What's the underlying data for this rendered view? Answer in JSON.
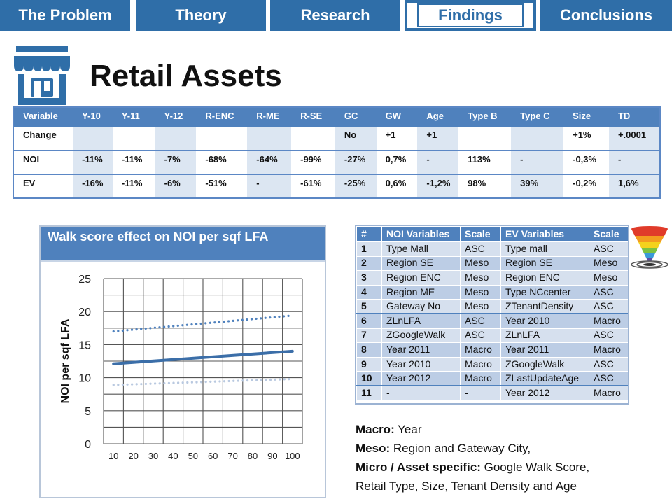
{
  "nav": {
    "tabs": [
      {
        "label": "The Problem",
        "active": false
      },
      {
        "label": "Theory",
        "active": false
      },
      {
        "label": "Research",
        "active": false
      },
      {
        "label": "Findings",
        "active": true
      },
      {
        "label": "Conclusions",
        "active": false
      }
    ]
  },
  "colors": {
    "nav_blue": "#2f6ea8",
    "table_header": "#4f81bd",
    "shade": "#dce6f2"
  },
  "page": {
    "title": "Retail Assets",
    "icon": "store-icon"
  },
  "top_table": {
    "columns": [
      "Variable",
      "Y-10",
      "Y-11",
      "Y-12",
      "R-ENC",
      "R-ME",
      "R-SE",
      "GC",
      "GW",
      "Age",
      "Type B",
      "Type C",
      "Size",
      "TD"
    ],
    "rows": [
      [
        "Change",
        "",
        "",
        "",
        "",
        "",
        "",
        "No",
        "+1",
        "+1",
        "",
        "",
        "+1%",
        "+.0001"
      ],
      [
        "NOI",
        "-11%",
        "-11%",
        "-7%",
        "-68%",
        "-64%",
        "-99%",
        "-27%",
        "0,7%",
        "-",
        "113%",
        "-",
        "-0,3%",
        "-"
      ],
      [
        "EV",
        "-16%",
        "-11%",
        "-6%",
        "-51%",
        "-",
        "-61%",
        "-25%",
        "0,6%",
        "-1,2%",
        "98%",
        "39%",
        "-0,2%",
        "1,6%"
      ]
    ]
  },
  "chart": {
    "title": "Walk score effect on NOI per sqf LFA"
  },
  "chart_data": {
    "type": "line",
    "title": "Walk score effect on NOI per sqf LFA",
    "xlabel": "",
    "ylabel": "NOI per sqf LFA",
    "x": [
      10,
      20,
      30,
      40,
      50,
      60,
      70,
      80,
      90,
      100
    ],
    "xlim": [
      10,
      100
    ],
    "ylim": [
      0,
      25
    ],
    "yticks": [
      0,
      5,
      10,
      15,
      20,
      25
    ],
    "grid": true,
    "series": [
      {
        "style": "dotted",
        "color": "#4f81bd",
        "x": [
          10,
          100
        ],
        "y": [
          17,
          19.4
        ]
      },
      {
        "style": "solid",
        "color": "#3b6ea8",
        "x": [
          10,
          100
        ],
        "y": [
          12.1,
          14
        ]
      },
      {
        "style": "dotted",
        "color": "#b9c9e0",
        "x": [
          10,
          100
        ],
        "y": [
          8.9,
          9.8
        ]
      }
    ]
  },
  "var_table": {
    "columns": [
      "#",
      "NOI Variables",
      "Scale",
      "EV Variables",
      "Scale"
    ],
    "rows": [
      [
        "1",
        "Type Mall",
        "ASC",
        "Type mall",
        "ASC"
      ],
      [
        "2",
        "Region SE",
        "Meso",
        "Region SE",
        "Meso"
      ],
      [
        "3",
        "Region ENC",
        "Meso",
        "Region ENC",
        "Meso"
      ],
      [
        "4",
        "Region ME",
        "Meso",
        "Type NCcenter",
        "ASC"
      ],
      [
        "5",
        "Gateway No",
        "Meso",
        "ZTenantDensity",
        "ASC"
      ],
      [
        "6",
        "ZLnLFA",
        "ASC",
        "Year 2010",
        "Macro"
      ],
      [
        "7",
        "ZGoogleWalk",
        "ASC",
        "ZLnLFA",
        "ASC"
      ],
      [
        "8",
        "Year 2011",
        "Macro",
        "Year 2011",
        "Macro"
      ],
      [
        "9",
        "Year 2010",
        "Macro",
        "ZGoogleWalk",
        "ASC"
      ],
      [
        "10",
        "Year 2012",
        "Macro",
        "ZLastUpdateAge",
        "ASC"
      ],
      [
        "11",
        "-",
        "-",
        "Year 2012",
        "Macro"
      ]
    ]
  },
  "notes": [
    {
      "label": "Macro:",
      "text": " Year"
    },
    {
      "label": "Meso:",
      "text": " Region and Gateway City,"
    },
    {
      "label": "Micro / Asset specific:",
      "text": " Google Walk Score,"
    },
    {
      "label": "",
      "text": "Retail Type, Size, Tenant Density and Age"
    }
  ],
  "icons": {
    "funnel": "funnel-target-icon"
  }
}
